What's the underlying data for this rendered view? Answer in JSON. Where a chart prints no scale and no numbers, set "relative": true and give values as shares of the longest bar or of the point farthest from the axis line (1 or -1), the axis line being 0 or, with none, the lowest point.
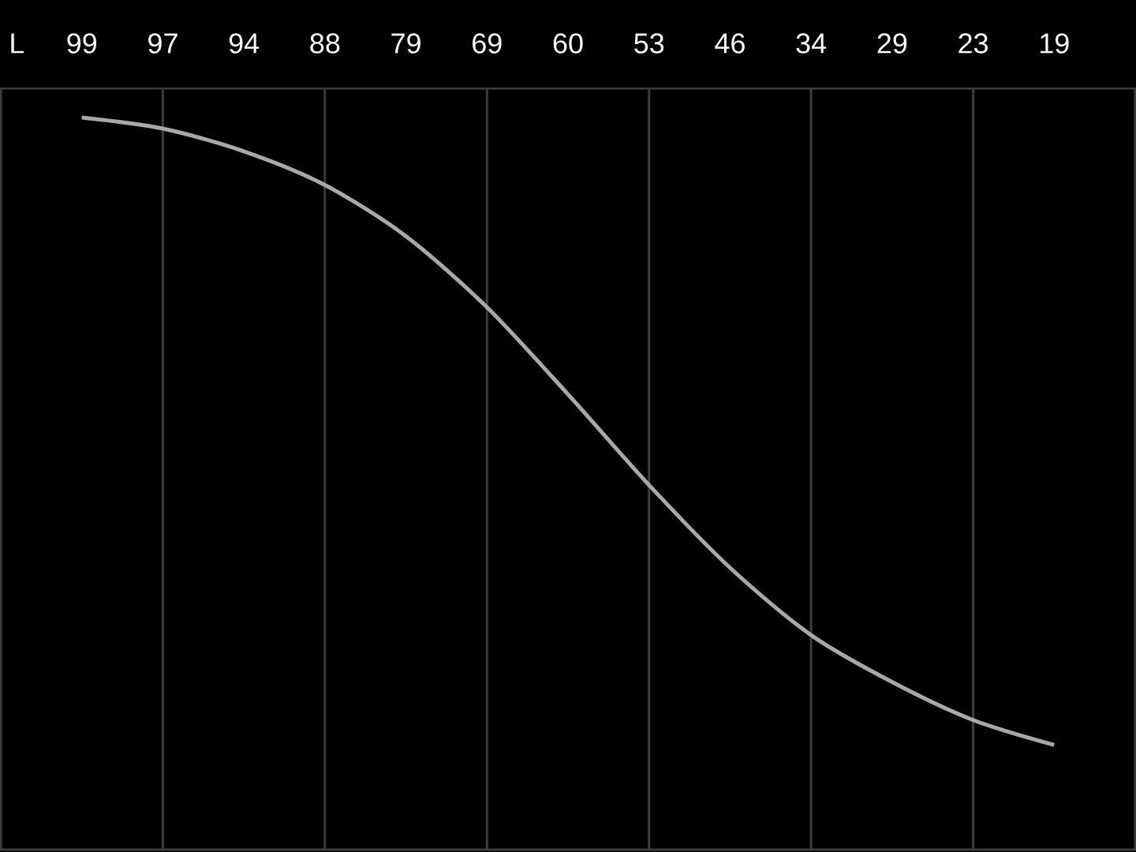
{
  "chart_data": {
    "type": "line",
    "xlabel": "L",
    "categories": [
      "99",
      "97",
      "94",
      "88",
      "79",
      "69",
      "60",
      "53",
      "46",
      "34",
      "29",
      "23",
      "19"
    ],
    "relative": true,
    "grid": "x",
    "series": [
      {
        "color": "#a8a8a8",
        "values": [
          1,
          0.985,
          0.954,
          0.908,
          0.838,
          0.741,
          0.622,
          0.498,
          0.385,
          0.293,
          0.229,
          0.177,
          0.143
        ]
      }
    ]
  }
}
